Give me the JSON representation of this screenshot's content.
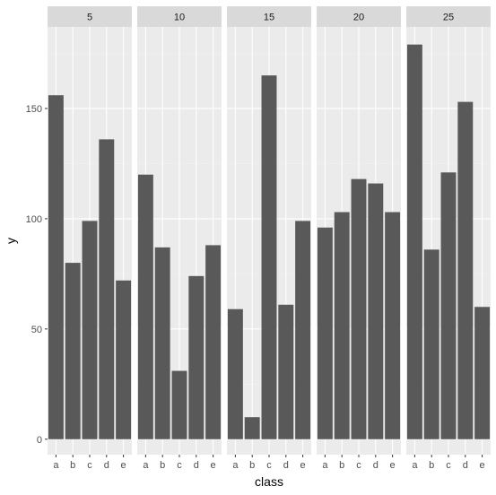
{
  "chart_data": {
    "type": "bar",
    "facet_label": "",
    "categories": [
      "a",
      "b",
      "c",
      "d",
      "e"
    ],
    "facets": [
      {
        "name": "5",
        "values": [
          156,
          80,
          99,
          136,
          72
        ]
      },
      {
        "name": "10",
        "values": [
          120,
          87,
          31,
          74,
          88
        ]
      },
      {
        "name": "15",
        "values": [
          59,
          10,
          165,
          61,
          99
        ]
      },
      {
        "name": "20",
        "values": [
          96,
          103,
          118,
          116,
          103
        ]
      },
      {
        "name": "25",
        "values": [
          179,
          86,
          121,
          153,
          60
        ]
      }
    ],
    "xlabel": "class",
    "ylabel": "y",
    "ylim": [
      -7,
      187
    ],
    "yticks": [
      0,
      50,
      100,
      150
    ],
    "grid": true,
    "legend": "none",
    "colors": {
      "bar": "#595959",
      "panel_bg": "#ebebeb",
      "strip_bg": "#d9d9d9",
      "grid_major": "#ffffff",
      "grid_minor": "#f2f2f2",
      "tick_text": "#4d4d4d"
    }
  }
}
